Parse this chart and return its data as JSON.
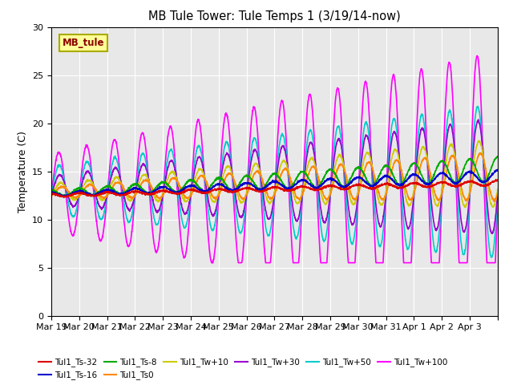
{
  "title": "MB Tule Tower: Tule Temps 1 (3/19/14-now)",
  "ylabel": "Temperature (C)",
  "ylim": [
    0,
    30
  ],
  "yticks": [
    0,
    5,
    10,
    15,
    20,
    25,
    30
  ],
  "plot_bg": "#e8e8e8",
  "fig_bg": "#ffffff",
  "annotation_label": "MB_tule",
  "series": [
    {
      "label": "Tul1_Ts-32",
      "color": "#dd0000",
      "base_s": 12.5,
      "base_e": 13.8,
      "amp_s": 0.15,
      "amp_e": 0.25,
      "phase": 1.57
    },
    {
      "label": "Tul1_Ts-16",
      "color": "#0000cc",
      "base_s": 12.6,
      "base_e": 14.5,
      "amp_s": 0.2,
      "amp_e": 0.6,
      "phase": 1.57
    },
    {
      "label": "Tul1_Ts-8",
      "color": "#00aa00",
      "base_s": 12.7,
      "base_e": 15.2,
      "amp_s": 0.3,
      "amp_e": 1.3,
      "phase": 1.57
    },
    {
      "label": "Tul1_Ts0",
      "color": "#ff8800",
      "base_s": 12.8,
      "base_e": 14.5,
      "amp_s": 0.5,
      "amp_e": 2.5,
      "phase": -0.8
    },
    {
      "label": "Tul1_Tw+10",
      "color": "#cccc00",
      "base_s": 12.9,
      "base_e": 14.8,
      "amp_s": 0.8,
      "amp_e": 3.5,
      "phase": -0.5
    },
    {
      "label": "Tul1_Tw+30",
      "color": "#9900cc",
      "base_s": 13.0,
      "base_e": 14.5,
      "amp_s": 1.5,
      "amp_e": 6.0,
      "phase": -0.3
    },
    {
      "label": "Tul1_Tw+50",
      "color": "#00cccc",
      "base_s": 13.0,
      "base_e": 14.0,
      "amp_s": 2.5,
      "amp_e": 8.0,
      "phase": -0.2
    },
    {
      "label": "Tul1_Tw+100",
      "color": "#ff00ff",
      "base_s": 12.8,
      "base_e": 13.5,
      "amp_s": 4.0,
      "amp_e": 14.0,
      "phase": -0.1
    }
  ],
  "x_tick_labels": [
    "Mar 19",
    "Mar 20",
    "Mar 21",
    "Mar 22",
    "Mar 23",
    "Mar 24",
    "Mar 25",
    "Mar 26",
    "Mar 27",
    "Mar 28",
    "Mar 29",
    "Mar 30",
    "Mar 31",
    "Apr 1",
    "Apr 2",
    "Apr 3"
  ],
  "n_days": 16,
  "figsize": [
    6.4,
    4.8
  ],
  "dpi": 100
}
